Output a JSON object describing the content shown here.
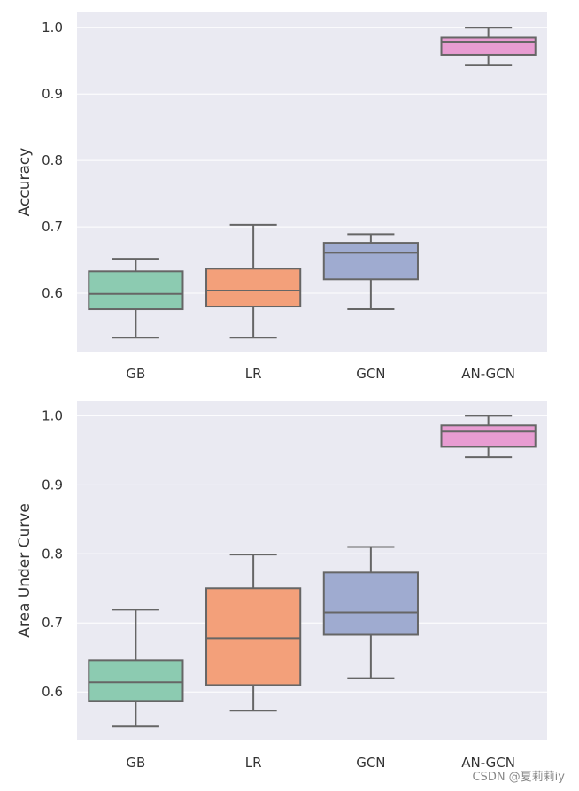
{
  "chart_data": [
    {
      "type": "box",
      "ylabel": "Accuracy",
      "categories": [
        "GB",
        "LR",
        "GCN",
        "AN-GCN"
      ],
      "ylim": [
        0.512,
        1.023
      ],
      "yticks": [
        "0.6",
        "0.7",
        "0.8",
        "0.9",
        "1.0"
      ],
      "grid": true,
      "colors": [
        "#8ccbb1",
        "#f3a07a",
        "#9fabd0",
        "#e89cd2"
      ],
      "boxes": [
        {
          "whisker_low": 0.533,
          "q1": 0.576,
          "median": 0.599,
          "q3": 0.633,
          "whisker_high": 0.652
        },
        {
          "whisker_low": 0.533,
          "q1": 0.58,
          "median": 0.604,
          "q3": 0.637,
          "whisker_high": 0.703
        },
        {
          "whisker_low": 0.576,
          "q1": 0.621,
          "median": 0.661,
          "q3": 0.676,
          "whisker_high": 0.689
        },
        {
          "whisker_low": 0.944,
          "q1": 0.959,
          "median": 0.979,
          "q3": 0.985,
          "whisker_high": 1.0
        }
      ]
    },
    {
      "type": "box",
      "ylabel": "Area Under Curve",
      "categories": [
        "GB",
        "LR",
        "GCN",
        "AN-GCN"
      ],
      "ylim": [
        0.531,
        1.021
      ],
      "yticks": [
        "0.6",
        "0.7",
        "0.8",
        "0.9",
        "1.0"
      ],
      "grid": true,
      "colors": [
        "#8ccbb1",
        "#f3a07a",
        "#9fabd0",
        "#e89cd2"
      ],
      "boxes": [
        {
          "whisker_low": 0.55,
          "q1": 0.587,
          "median": 0.614,
          "q3": 0.646,
          "whisker_high": 0.719
        },
        {
          "whisker_low": 0.573,
          "q1": 0.61,
          "median": 0.678,
          "q3": 0.75,
          "whisker_high": 0.799
        },
        {
          "whisker_low": 0.62,
          "q1": 0.683,
          "median": 0.715,
          "q3": 0.773,
          "whisker_high": 0.81
        },
        {
          "whisker_low": 0.94,
          "q1": 0.955,
          "median": 0.977,
          "q3": 0.986,
          "whisker_high": 1.0
        }
      ]
    }
  ],
  "watermark": "CSDN @夏莉莉iy"
}
